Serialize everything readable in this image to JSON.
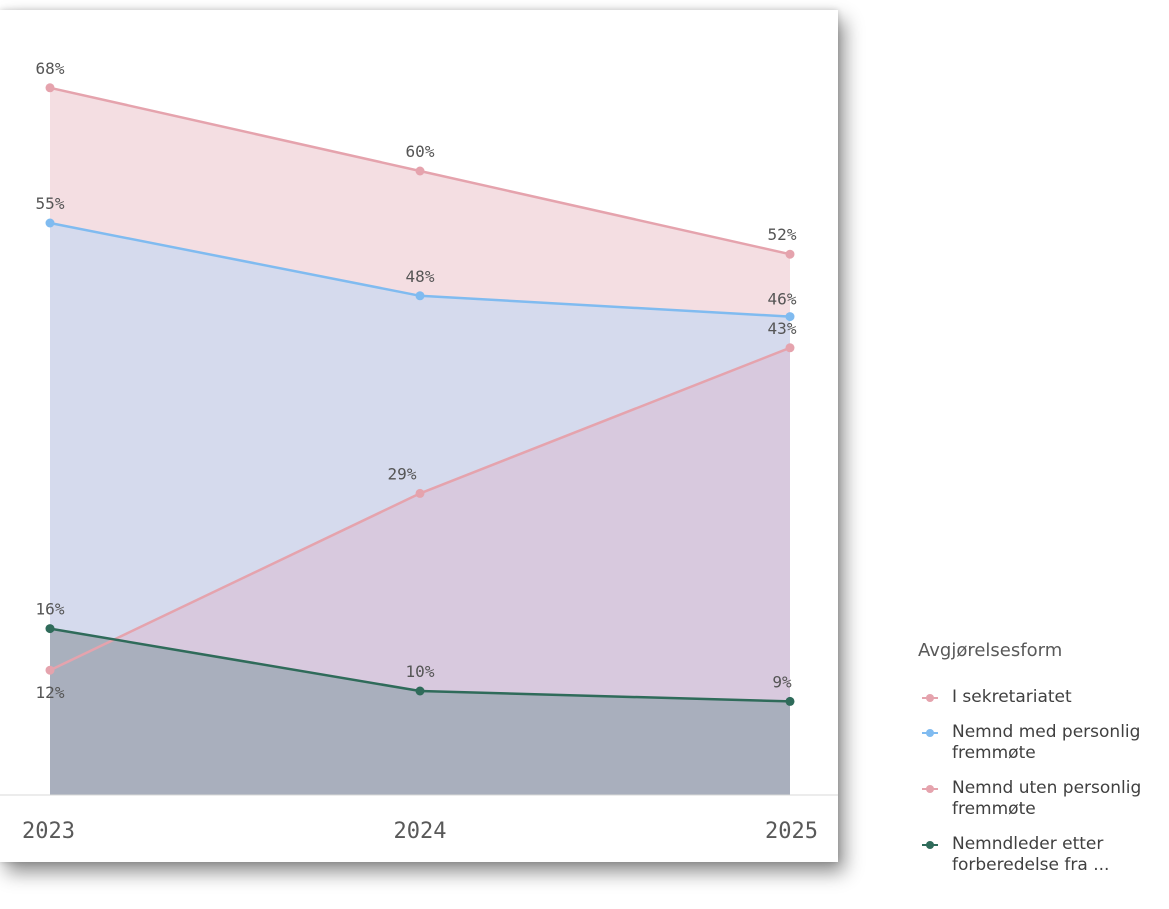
{
  "chart_data": {
    "type": "area",
    "categories": [
      "2023",
      "2024",
      "2025"
    ],
    "ylim": [
      0,
      70
    ],
    "grid": false,
    "legend_position": "right-bottom",
    "series": [
      {
        "name": "I sekretariatet",
        "values": [
          68,
          60,
          52
        ],
        "labels": [
          "68%",
          "60%",
          "52%"
        ],
        "color": "#e5a3ad",
        "fill": "#f0d3d8"
      },
      {
        "name": "Nemnd med personlig fremmøte",
        "values": [
          55,
          48,
          46
        ],
        "labels": [
          "55%",
          "48%",
          "46%"
        ],
        "color": "#80bbf0",
        "fill": "#cbd8f0"
      },
      {
        "name": "Nemnd uten personlig fremmøte",
        "values": [
          12,
          29,
          43
        ],
        "labels": [
          "12%",
          "29%",
          "43%"
        ],
        "color": "#e5a3ad",
        "fill": "#d8c3d8"
      },
      {
        "name": "Nemndleder etter forberedelse fra ...",
        "values": [
          16,
          10,
          9
        ],
        "labels": [
          "16%",
          "10%",
          "9%"
        ],
        "color": "#2f6b5a",
        "fill": "#a6aeba"
      }
    ]
  },
  "legend": {
    "title": "Avgjørelsesform",
    "items": [
      {
        "label": "I sekretariatet",
        "color": "#e5a3ad"
      },
      {
        "label": "Nemnd med personlig\nfremmøte",
        "color": "#80bbf0"
      },
      {
        "label": "Nemnd uten personlig\nfremmøte",
        "color": "#e5a3ad"
      },
      {
        "label": "Nemndleder etter\nforberedelse fra ...",
        "color": "#2f6b5a"
      }
    ]
  }
}
